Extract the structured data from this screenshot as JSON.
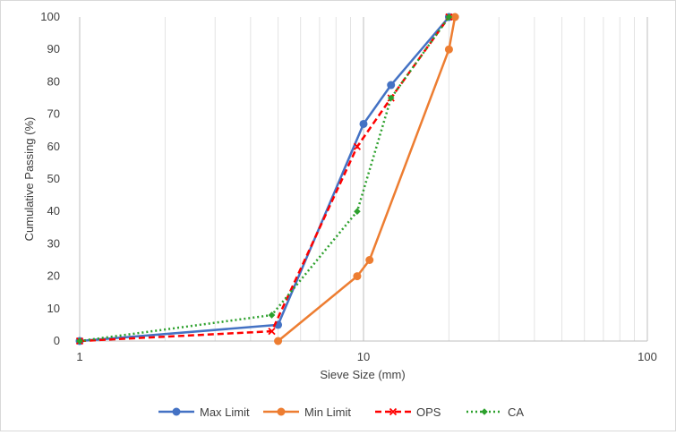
{
  "chart_data": {
    "type": "line",
    "title": "",
    "xlabel": "Sieve Size (mm)",
    "ylabel": "Cumulative Passing (%)",
    "x_scale": "log",
    "xlim": [
      1,
      100
    ],
    "ylim": [
      0,
      100
    ],
    "x_ticks": [
      1,
      10,
      100
    ],
    "x_tick_labels": [
      "1",
      "10",
      "100"
    ],
    "y_ticks": [
      0,
      10,
      20,
      30,
      40,
      50,
      60,
      70,
      80,
      90,
      100
    ],
    "y_tick_labels": [
      "0",
      "10",
      "20",
      "30",
      "40",
      "50",
      "60",
      "70",
      "80",
      "90",
      "100"
    ],
    "grid": "vertical minor and major (log)",
    "legend_position": "bottom",
    "series": [
      {
        "name": "Max Limit",
        "color": "#4472C4",
        "style": "solid",
        "marker": "circle",
        "points": [
          [
            1,
            0
          ],
          [
            5,
            5
          ],
          [
            10,
            67
          ],
          [
            12.5,
            79
          ],
          [
            20,
            100
          ]
        ]
      },
      {
        "name": "Min Limit",
        "color": "#ED7D31",
        "style": "solid",
        "marker": "circle",
        "points": [
          [
            5,
            0
          ],
          [
            9.5,
            20
          ],
          [
            10.5,
            25
          ],
          [
            20,
            90
          ],
          [
            21,
            100
          ]
        ]
      },
      {
        "name": "OPS",
        "color": "#FF0000",
        "style": "dashed",
        "marker": "x",
        "points": [
          [
            1,
            0
          ],
          [
            4.75,
            3
          ],
          [
            9.5,
            60
          ],
          [
            12.5,
            75
          ],
          [
            20,
            100
          ]
        ]
      },
      {
        "name": "CA",
        "color": "#2CA02C",
        "style": "dotted",
        "marker": "diamond",
        "points": [
          [
            1,
            0
          ],
          [
            4.75,
            8
          ],
          [
            9.5,
            40
          ],
          [
            12.5,
            75
          ],
          [
            20,
            100
          ]
        ]
      }
    ]
  }
}
